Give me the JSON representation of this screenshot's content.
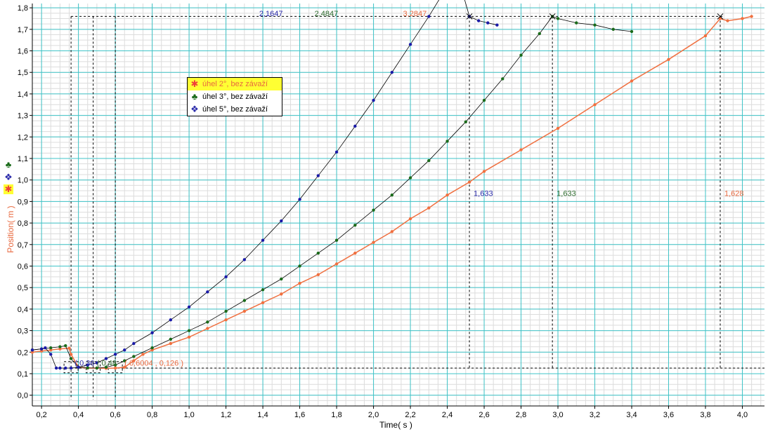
{
  "chart_data": {
    "type": "line",
    "xlabel": "Time( s )",
    "ylabel": "Position( m )",
    "xlim": [
      0.15,
      4.12
    ],
    "ylim": [
      -0.05,
      1.82
    ],
    "x_ticks": [
      "0,2",
      "0,4",
      "0,6",
      "0,8",
      "1,0",
      "1,2",
      "1,4",
      "1,6",
      "1,8",
      "2,0",
      "2,2",
      "2,4",
      "2,6",
      "2,8",
      "3,0",
      "3,2",
      "3,4",
      "3,6",
      "3,8",
      "4,0"
    ],
    "y_ticks": [
      "0,0",
      "0,1",
      "0,2",
      "0,3",
      "0,4",
      "0,5",
      "0,6",
      "0,7",
      "0,8",
      "0,9",
      "1,0",
      "1,1",
      "1,2",
      "1,3",
      "1,4",
      "1,5",
      "1,6",
      "1,7",
      "1,8"
    ],
    "grid": true,
    "legend_position": "upper-left-center",
    "series": [
      {
        "name": "úhel 2°, bez závaží",
        "color": "#f07040",
        "marker": "asterisk",
        "x": [
          0.15,
          0.2,
          0.25,
          0.3,
          0.35,
          0.36,
          0.4,
          0.45,
          0.5,
          0.55,
          0.6,
          0.65,
          0.7,
          0.75,
          0.8,
          0.9,
          1.0,
          1.1,
          1.2,
          1.3,
          1.4,
          1.5,
          1.6,
          1.7,
          1.8,
          1.9,
          2.0,
          2.1,
          2.2,
          2.3,
          2.4,
          2.52,
          2.6,
          2.8,
          3.0,
          3.2,
          3.4,
          3.6,
          3.8,
          3.88,
          3.92,
          4.0,
          4.05
        ],
        "y": [
          0.2,
          0.205,
          0.21,
          0.215,
          0.218,
          0.19,
          0.13,
          0.126,
          0.126,
          0.125,
          0.126,
          0.13,
          0.16,
          0.19,
          0.21,
          0.24,
          0.27,
          0.31,
          0.35,
          0.39,
          0.43,
          0.47,
          0.52,
          0.56,
          0.61,
          0.66,
          0.71,
          0.76,
          0.82,
          0.87,
          0.93,
          0.99,
          1.04,
          1.14,
          1.24,
          1.35,
          1.46,
          1.56,
          1.67,
          1.75,
          1.74,
          1.75,
          1.76
        ]
      },
      {
        "name": "úhel 3°, bez závaží",
        "color": "#1a6b1a",
        "marker": "club",
        "x": [
          0.15,
          0.2,
          0.25,
          0.3,
          0.33,
          0.36,
          0.4,
          0.45,
          0.5,
          0.55,
          0.6,
          0.65,
          0.7,
          0.8,
          0.9,
          1.0,
          1.1,
          1.2,
          1.3,
          1.4,
          1.5,
          1.6,
          1.7,
          1.8,
          1.9,
          2.0,
          2.1,
          2.2,
          2.3,
          2.4,
          2.5,
          2.6,
          2.7,
          2.8,
          2.9,
          2.97,
          3.0,
          3.1,
          3.2,
          3.3,
          3.4
        ],
        "y": [
          0.21,
          0.215,
          0.22,
          0.225,
          0.23,
          0.17,
          0.13,
          0.127,
          0.126,
          0.13,
          0.14,
          0.16,
          0.18,
          0.22,
          0.26,
          0.3,
          0.34,
          0.39,
          0.44,
          0.49,
          0.54,
          0.6,
          0.66,
          0.72,
          0.79,
          0.86,
          0.93,
          1.01,
          1.09,
          1.18,
          1.27,
          1.37,
          1.47,
          1.58,
          1.68,
          1.76,
          1.75,
          1.73,
          1.72,
          1.7,
          1.69
        ]
      },
      {
        "name": "úhel 5°, bez závaží",
        "color": "#1a1aa8",
        "marker": "diamond4",
        "x": [
          0.15,
          0.2,
          0.22,
          0.25,
          0.28,
          0.3,
          0.33,
          0.36,
          0.4,
          0.45,
          0.5,
          0.55,
          0.6,
          0.65,
          0.7,
          0.8,
          0.9,
          1.0,
          1.1,
          1.2,
          1.3,
          1.4,
          1.5,
          1.6,
          1.7,
          1.8,
          1.9,
          2.0,
          2.1,
          2.2,
          2.3,
          2.4,
          2.45,
          2.52,
          2.57,
          2.62,
          2.67
        ],
        "y": [
          0.21,
          0.215,
          0.22,
          0.19,
          0.126,
          0.126,
          0.126,
          0.126,
          0.13,
          0.14,
          0.15,
          0.17,
          0.19,
          0.21,
          0.24,
          0.29,
          0.35,
          0.41,
          0.48,
          0.55,
          0.63,
          0.72,
          0.81,
          0.91,
          1.02,
          1.13,
          1.25,
          1.37,
          1.5,
          1.63,
          1.76,
          1.9,
          1.97,
          1.76,
          1.74,
          1.73,
          1.72
        ]
      }
    ],
    "annotations": {
      "top_times": [
        {
          "text": "2,1647",
          "color": "#2a2aaa",
          "x": 2.52
        },
        {
          "text": "2,4847",
          "color": "#2e6b2e",
          "x": 2.97
        },
        {
          "text": "3,2847",
          "color": "#e8693f",
          "x": 3.88
        }
      ],
      "mid_values": [
        {
          "text": "1,633",
          "color": "#2a2aaa",
          "x": 2.52
        },
        {
          "text": "1,633",
          "color": "#2e6b2e",
          "x": 2.97
        },
        {
          "text": "1,628",
          "color": "#e8693f",
          "x": 3.88
        }
      ],
      "bottom_labels": [
        {
          "text": "( 0,36",
          "color": "#2a2aaa"
        },
        {
          "text": "( 0,48",
          "color": "#2e6b2e"
        },
        {
          "text": "( 0,6004 , 0,126 )",
          "color": "#e8693f"
        }
      ]
    },
    "colors": {
      "grid_major": "#3fc4c8",
      "grid_minor": "#dcdcdc",
      "axis": "#000000",
      "legend_highlight": "#ffff33"
    }
  }
}
